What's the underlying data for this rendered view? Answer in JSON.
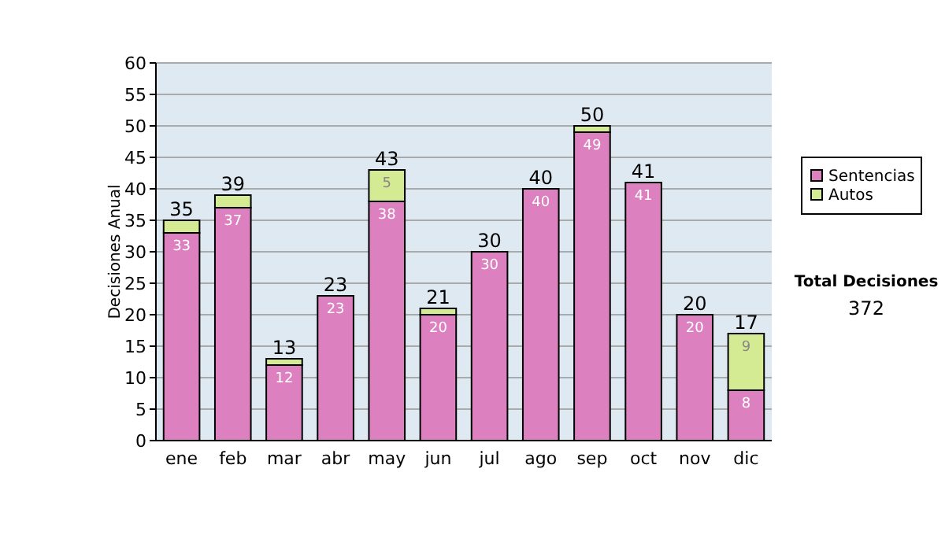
{
  "chart_data": {
    "type": "bar",
    "stacked": true,
    "ylabel": "Decisiones Anual",
    "categories": [
      "ene",
      "feb",
      "mar",
      "abr",
      "may",
      "jun",
      "jul",
      "ago",
      "sep",
      "oct",
      "nov",
      "dic"
    ],
    "series": [
      {
        "name": "Sentencias",
        "color": "#dd80c0",
        "values": [
          33,
          37,
          12,
          23,
          38,
          20,
          30,
          40,
          49,
          41,
          20,
          8
        ],
        "value_labels": [
          "33",
          "37",
          "12",
          "23",
          "38",
          "20",
          "30",
          "40",
          "49",
          "41",
          "20",
          "8"
        ]
      },
      {
        "name": "Autos",
        "color": "#d4eb94",
        "values": [
          2,
          2,
          1,
          0,
          5,
          1,
          0,
          0,
          1,
          0,
          0,
          9
        ],
        "value_labels": [
          null,
          null,
          null,
          null,
          "5",
          null,
          null,
          null,
          null,
          null,
          null,
          "9"
        ]
      }
    ],
    "totals": [
      "35",
      "39",
      "13",
      "23",
      "43",
      "21",
      "30",
      "40",
      "50",
      "41",
      "20",
      "17"
    ],
    "ylim": [
      0,
      60
    ],
    "yticks": [
      0,
      5,
      10,
      15,
      20,
      25,
      30,
      35,
      40,
      45,
      50,
      55,
      60
    ],
    "grid": "y",
    "legend": "right",
    "annotations": [
      "Total Decisiones",
      "372"
    ]
  }
}
